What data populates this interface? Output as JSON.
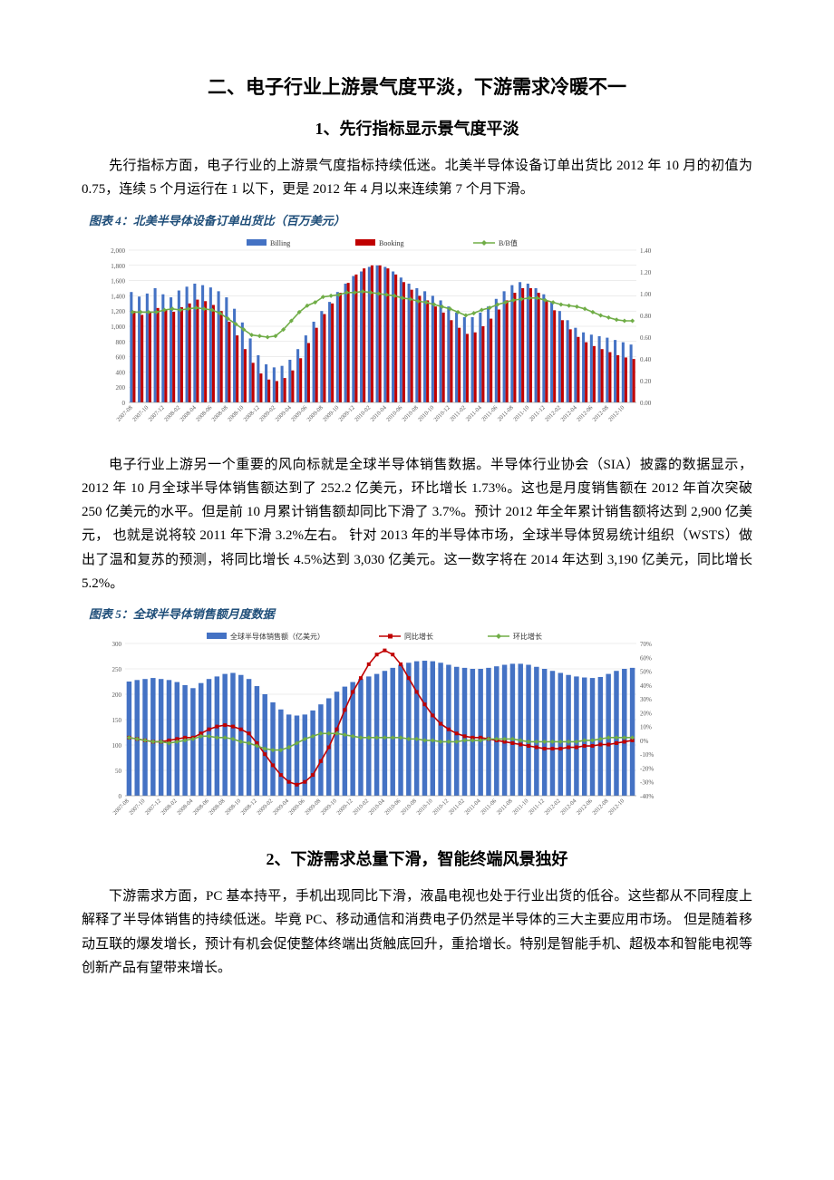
{
  "heading_main": "二、电子行业上游景气度平淡，下游需求冷暖不一",
  "section1": {
    "heading": "1、先行指标显示景气度平淡",
    "para": "先行指标方面，电子行业的上游景气度指标持续低迷。北美半导体设备订单出货比 2012 年 10 月的初值为 0.75，连续 5 个月运行在 1 以下，更是 2012 年 4 月以来连续第 7 个月下滑。"
  },
  "chart4": {
    "title": "图表 4：北美半导体设备订单出货比（百万美元）",
    "legend": {
      "s1": "Billing",
      "s2": "Booking",
      "s3": "B/B值"
    },
    "y_left": {
      "min": 0,
      "max": 2000,
      "step": 200,
      "ticks": [
        "0",
        "200",
        "400",
        "600",
        "800",
        "1,000",
        "1,200",
        "1,400",
        "1,600",
        "1,800",
        "2,000"
      ]
    },
    "y_right": {
      "min": 0,
      "max": 1.4,
      "step": 0.2,
      "ticks": [
        "0.00",
        "0.20",
        "0.40",
        "0.60",
        "0.80",
        "1.00",
        "1.20",
        "1.40"
      ]
    },
    "colors": {
      "billing": "#4472c4",
      "booking": "#c00000",
      "bb": "#70ad47",
      "grid": "#d9d9d9",
      "axis": "#808080",
      "bg": "#ffffff"
    },
    "x_labels": [
      "2007-08",
      "2007-10",
      "2007-12",
      "2008-02",
      "2008-04",
      "2008-06",
      "2008-08",
      "2008-10",
      "2008-12",
      "2009-02",
      "2009-04",
      "2009-06",
      "2009-08",
      "2009-10",
      "2009-12",
      "2010-02",
      "2010-04",
      "2010-06",
      "2010-08",
      "2010-10",
      "2010-12",
      "2011-02",
      "2011-04",
      "2011-06",
      "2011-08",
      "2011-10",
      "2011-12",
      "2012-02",
      "2012-04",
      "2012-06",
      "2012-08",
      "2012-10"
    ],
    "billing": [
      1450,
      1390,
      1430,
      1500,
      1420,
      1380,
      1470,
      1520,
      1560,
      1540,
      1510,
      1460,
      1380,
      1230,
      1050,
      840,
      620,
      500,
      460,
      480,
      560,
      700,
      880,
      1060,
      1200,
      1320,
      1450,
      1560,
      1660,
      1720,
      1780,
      1800,
      1780,
      1720,
      1640,
      1560,
      1500,
      1460,
      1400,
      1340,
      1260,
      1180,
      1120,
      1120,
      1180,
      1260,
      1360,
      1460,
      1540,
      1580,
      1560,
      1500,
      1420,
      1320,
      1200,
      1080,
      980,
      920,
      890,
      870,
      850,
      820,
      790,
      760
    ],
    "booking": [
      1200,
      1150,
      1180,
      1240,
      1210,
      1190,
      1250,
      1300,
      1350,
      1330,
      1280,
      1200,
      1060,
      880,
      700,
      520,
      380,
      300,
      280,
      320,
      420,
      580,
      780,
      980,
      1160,
      1300,
      1440,
      1570,
      1680,
      1760,
      1800,
      1800,
      1760,
      1680,
      1580,
      1480,
      1400,
      1340,
      1260,
      1180,
      1080,
      980,
      900,
      920,
      1000,
      1100,
      1220,
      1340,
      1440,
      1500,
      1500,
      1440,
      1340,
      1210,
      1080,
      960,
      860,
      790,
      740,
      700,
      660,
      620,
      590,
      570
    ],
    "bb": [
      0.83,
      0.83,
      0.83,
      0.83,
      0.85,
      0.86,
      0.85,
      0.86,
      0.87,
      0.86,
      0.85,
      0.82,
      0.77,
      0.72,
      0.67,
      0.62,
      0.61,
      0.6,
      0.61,
      0.67,
      0.75,
      0.83,
      0.89,
      0.92,
      0.97,
      0.98,
      0.99,
      1.01,
      1.01,
      1.02,
      1.01,
      1.0,
      0.99,
      0.98,
      0.96,
      0.95,
      0.93,
      0.92,
      0.9,
      0.88,
      0.86,
      0.83,
      0.8,
      0.82,
      0.85,
      0.87,
      0.9,
      0.92,
      0.94,
      0.95,
      0.96,
      0.96,
      0.94,
      0.92,
      0.9,
      0.89,
      0.88,
      0.86,
      0.83,
      0.8,
      0.78,
      0.76,
      0.75,
      0.75
    ]
  },
  "mid_para": "电子行业上游另一个重要的风向标就是全球半导体销售数据。半导体行业协会（SIA）披露的数据显示，2012 年 10 月全球半导体销售额达到了 252.2 亿美元，环比增长 1.73%。这也是月度销售额在 2012 年首次突破 250 亿美元的水平。但是前 10 月累计销售额却同比下滑了 3.7%。预计 2012 年全年累计销售额将达到 2,900 亿美元， 也就是说将较 2011 年下滑 3.2%左右。 针对 2013 年的半导体市场，全球半导体贸易统计组织（WSTS）做出了温和复苏的预测，将同比增长 4.5%达到 3,030 亿美元。这一数字将在 2014 年达到 3,190 亿美元，同比增长 5.2%。",
  "chart5": {
    "title": "图表 5：全球半导体销售额月度数据",
    "legend": {
      "s1": "全球半导体销售额（亿美元）",
      "s2": "同比增长",
      "s3": "环比增长"
    },
    "y_left": {
      "min": 0,
      "max": 300,
      "step": 50,
      "ticks": [
        "0",
        "50",
        "100",
        "150",
        "200",
        "250",
        "300"
      ]
    },
    "y_right": {
      "min": -40,
      "max": 70,
      "step": 10,
      "ticks": [
        "-40%",
        "-30%",
        "-20%",
        "-10%",
        "0%",
        "10%",
        "20%",
        "30%",
        "40%",
        "50%",
        "60%",
        "70%"
      ]
    },
    "colors": {
      "bar": "#4472c4",
      "yoy": "#c00000",
      "mom": "#70ad47",
      "grid": "#d9d9d9",
      "axis": "#808080",
      "bg": "#ffffff"
    },
    "x_labels": [
      "2007-08",
      "2007-10",
      "2007-12",
      "2008-02",
      "2008-04",
      "2008-06",
      "2008-08",
      "2008-10",
      "2008-12",
      "2009-02",
      "2009-04",
      "2009-06",
      "2009-08",
      "2009-10",
      "2009-12",
      "2010-02",
      "2010-04",
      "2010-06",
      "2010-08",
      "2010-10",
      "2010-12",
      "2011-02",
      "2011-04",
      "2011-06",
      "2011-08",
      "2011-10",
      "2011-12",
      "2012-02",
      "2012-04",
      "2012-06",
      "2012-08",
      "2012-10"
    ],
    "sales": [
      225,
      228,
      230,
      232,
      230,
      228,
      224,
      218,
      212,
      222,
      230,
      235,
      240,
      242,
      238,
      230,
      216,
      200,
      184,
      170,
      160,
      158,
      160,
      168,
      180,
      192,
      205,
      215,
      224,
      230,
      235,
      240,
      246,
      252,
      258,
      262,
      265,
      266,
      265,
      262,
      258,
      254,
      252,
      250,
      250,
      252,
      255,
      258,
      260,
      260,
      258,
      254,
      250,
      246,
      242,
      238,
      235,
      233,
      232,
      234,
      240,
      246,
      250,
      252
    ],
    "yoy": [
      2,
      1,
      0,
      -1,
      -1,
      0,
      1,
      2,
      2,
      5,
      8,
      10,
      11,
      10,
      8,
      5,
      -2,
      -10,
      -18,
      -25,
      -30,
      -32,
      -30,
      -25,
      -15,
      -5,
      8,
      22,
      35,
      45,
      55,
      62,
      65,
      62,
      55,
      45,
      35,
      26,
      18,
      12,
      8,
      5,
      3,
      2,
      2,
      1,
      0,
      -1,
      -2,
      -3,
      -4,
      -5,
      -6,
      -6,
      -6,
      -5,
      -5,
      -4,
      -4,
      -3,
      -3,
      -2,
      -1,
      0
    ],
    "mom": [
      2,
      1,
      0,
      -1,
      -1,
      -2,
      -1,
      0,
      1,
      3,
      3,
      2,
      2,
      1,
      -1,
      -2,
      -4,
      -6,
      -7,
      -7,
      -5,
      -2,
      1,
      3,
      5,
      5,
      5,
      4,
      3,
      2,
      2,
      2,
      2,
      2,
      2,
      1,
      1,
      0,
      0,
      -1,
      -1,
      -1,
      0,
      0,
      0,
      1,
      1,
      1,
      1,
      0,
      -1,
      -1,
      -1,
      -1,
      -1,
      -1,
      -1,
      0,
      0,
      1,
      2,
      2,
      2,
      2
    ]
  },
  "section2": {
    "heading": "2、下游需求总量下滑，智能终端风景独好",
    "para": "下游需求方面，PC 基本持平，手机出现同比下滑，液晶电视也处于行业出货的低谷。这些都从不同程度上解释了半导体销售的持续低迷。毕竟 PC、移动通信和消费电子仍然是半导体的三大主要应用市场。 但是随着移动互联的爆发增长，预计有机会促使整体终端出货触底回升，重拾增长。特别是智能手机、超极本和智能电视等创新产品有望带来增长。"
  }
}
